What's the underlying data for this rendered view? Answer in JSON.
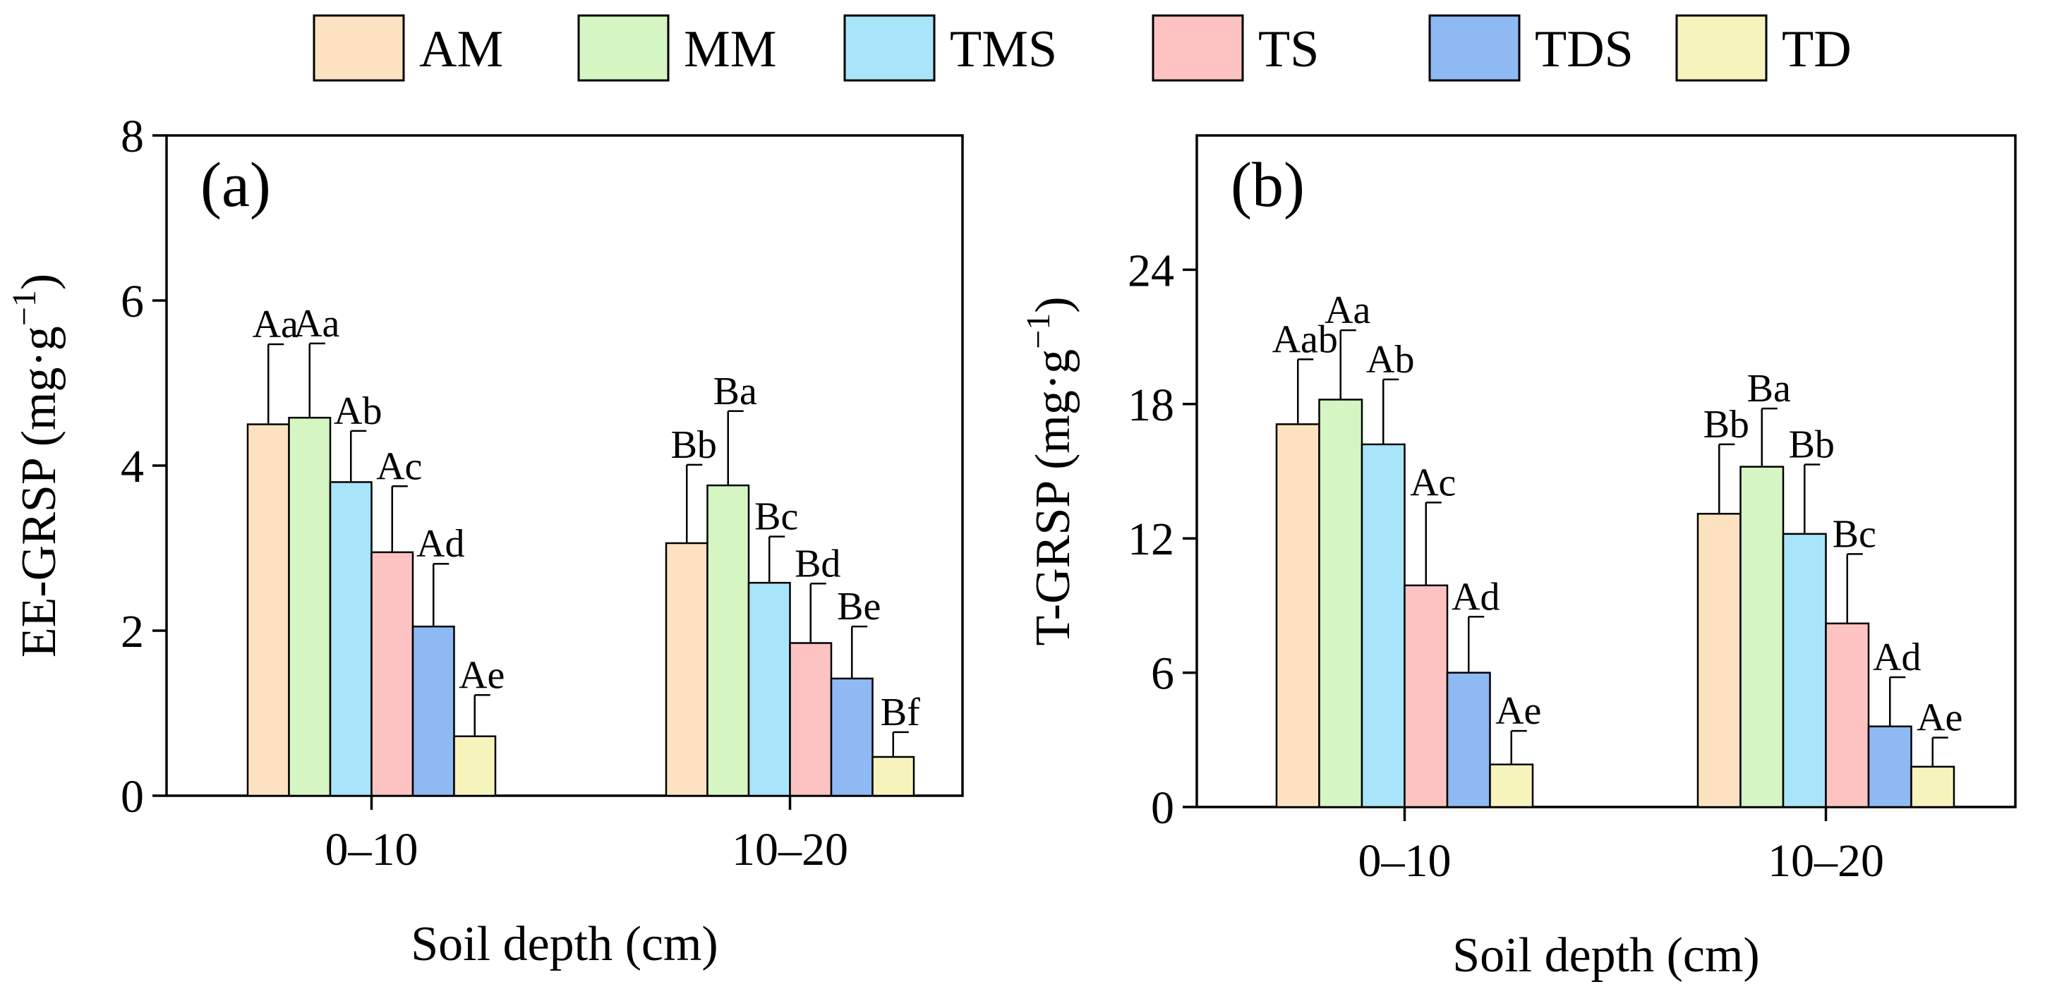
{
  "legend": {
    "entries": [
      {
        "name": "AM",
        "color": "#fde2c1"
      },
      {
        "name": "MM",
        "color": "#d5f6c3"
      },
      {
        "name": "TMS",
        "color": "#a8e5fb"
      },
      {
        "name": "TS",
        "color": "#fdc3c3"
      },
      {
        "name": "TDS",
        "color": "#8fb9f3"
      },
      {
        "name": "TD",
        "color": "#f6f3bd"
      }
    ]
  },
  "chart_data": [
    {
      "type": "bar",
      "panel": "(a)",
      "xlabel": "Soil depth (cm)",
      "ylabel": "EE-GRSP (mg·g",
      "ylabel_sup": "−1",
      "ylabel_close": ")",
      "categories": [
        "0–10",
        "10–20"
      ],
      "ylim": [
        0,
        8
      ],
      "yticks": [
        "0",
        "2",
        "4",
        "6",
        "8"
      ],
      "series": [
        {
          "name": "AM",
          "values": [
            4.5,
            3.06
          ],
          "errors": [
            0.97,
            0.95
          ],
          "labels": [
            "Aa",
            "Bb"
          ]
        },
        {
          "name": "MM",
          "values": [
            4.58,
            3.76
          ],
          "errors": [
            0.9,
            0.9
          ],
          "labels": [
            "Aa",
            "Ba"
          ]
        },
        {
          "name": "TMS",
          "values": [
            3.8,
            2.58
          ],
          "errors": [
            0.62,
            0.56
          ],
          "labels": [
            "Ab",
            "Bc"
          ]
        },
        {
          "name": "TS",
          "values": [
            2.95,
            1.85
          ],
          "errors": [
            0.8,
            0.72
          ],
          "labels": [
            "Ac",
            "Bd"
          ]
        },
        {
          "name": "TDS",
          "values": [
            2.05,
            1.42
          ],
          "errors": [
            0.76,
            0.63
          ],
          "labels": [
            "Ad",
            "Be"
          ]
        },
        {
          "name": "TD",
          "values": [
            0.72,
            0.47
          ],
          "errors": [
            0.5,
            0.3
          ],
          "labels": [
            "Ae",
            "Bf"
          ]
        }
      ]
    },
    {
      "type": "bar",
      "panel": "(b)",
      "xlabel": "Soil depth (cm)",
      "ylabel": "T-GRSP (mg·g",
      "ylabel_sup": "−1",
      "ylabel_close": ")",
      "categories": [
        "0–10",
        "10–20"
      ],
      "ylim": [
        0,
        30
      ],
      "yticks": [
        "0",
        "6",
        "12",
        "18",
        "24"
      ],
      "series": [
        {
          "name": "AM",
          "values": [
            17.1,
            13.1
          ],
          "errors": [
            2.9,
            3.1
          ],
          "labels": [
            "Aab",
            "Bb"
          ]
        },
        {
          "name": "MM",
          "values": [
            18.2,
            15.2
          ],
          "errors": [
            3.1,
            2.6
          ],
          "labels": [
            "Aa",
            "Ba"
          ]
        },
        {
          "name": "TMS",
          "values": [
            16.2,
            12.2
          ],
          "errors": [
            2.9,
            3.1
          ],
          "labels": [
            "Ab",
            "Bb"
          ]
        },
        {
          "name": "TS",
          "values": [
            9.9,
            8.2
          ],
          "errors": [
            3.7,
            3.1
          ],
          "labels": [
            "Ac",
            "Bc"
          ]
        },
        {
          "name": "TDS",
          "values": [
            6.0,
            3.6
          ],
          "errors": [
            2.5,
            2.2
          ],
          "labels": [
            "Ad",
            "Ad"
          ]
        },
        {
          "name": "TD",
          "values": [
            1.9,
            1.8
          ],
          "errors": [
            1.5,
            1.3
          ],
          "labels": [
            "Ae",
            "Ae"
          ]
        }
      ]
    }
  ]
}
